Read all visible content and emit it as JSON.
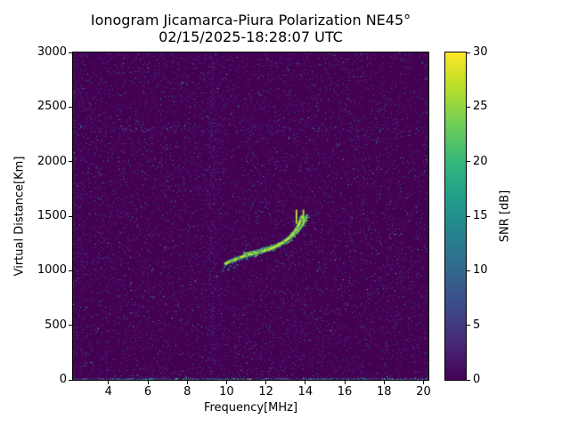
{
  "chart_data": {
    "type": "heatmap",
    "title": "Ionogram Jicamarca-Piura Polarization NE45°",
    "subtitle": "02/15/2025-18:28:07 UTC",
    "xlabel": "Frequency[MHz]",
    "ylabel": "Virtual Distance[Km]",
    "xlim": [
      2.2,
      20.25
    ],
    "ylim": [
      0,
      3000
    ],
    "xticks": [
      4,
      6,
      8,
      10,
      12,
      14,
      16,
      18,
      20
    ],
    "yticks": [
      0,
      500,
      1000,
      1500,
      2000,
      2500,
      3000
    ],
    "grid": false,
    "colormap": "viridis",
    "colormap_stops": [
      "#440154",
      "#482878",
      "#3e4989",
      "#31688e",
      "#26828e",
      "#1f9e89",
      "#35b779",
      "#6ece58",
      "#b5de2b",
      "#fde725"
    ],
    "colorbar": {
      "label": "SNR [dB]",
      "ticks": [
        0,
        5,
        10,
        15,
        20,
        25,
        30
      ],
      "min": 0,
      "max": 30,
      "position": "right"
    },
    "background": {
      "snr_db": 0,
      "noise_seed": 20250215,
      "noise_density": 0.055,
      "noise_snr_max": 15,
      "bright_speck_prob": 0.025
    },
    "rfi_bands": [
      {
        "f_start": 9.05,
        "f_end": 9.45,
        "density": 0.16,
        "snr_max": 9
      },
      {
        "f_start": 9.5,
        "f_end": 9.78,
        "density": 0.09,
        "snr_max": 8
      },
      {
        "f_start": 2.2,
        "f_end": 2.75,
        "density": 0.1,
        "snr_max": 9
      }
    ],
    "horizontal_band": {
      "km_center": 2300,
      "km_halfwidth": 22,
      "extra_density": 0.07,
      "snr_max": 11
    },
    "ground_echo": {
      "km_max": 20,
      "density": 0.5,
      "snr_min": 5,
      "snr_max": 27
    },
    "echo_traces": [
      {
        "name": "O-mode",
        "core_snr_db": 28,
        "halo_snr_db": 16,
        "points": [
          [
            9.95,
            1065
          ],
          [
            10.1,
            1080
          ],
          [
            10.3,
            1095
          ],
          [
            10.5,
            1110
          ],
          [
            10.7,
            1122
          ],
          [
            10.9,
            1133
          ],
          [
            11.1,
            1143
          ],
          [
            11.3,
            1152
          ],
          [
            11.5,
            1162
          ],
          [
            11.7,
            1172
          ],
          [
            11.9,
            1182
          ],
          [
            12.1,
            1193
          ],
          [
            12.3,
            1206
          ],
          [
            12.5,
            1222
          ],
          [
            12.7,
            1240
          ],
          [
            12.9,
            1262
          ],
          [
            13.1,
            1290
          ],
          [
            13.3,
            1325
          ],
          [
            13.5,
            1370
          ],
          [
            13.65,
            1415
          ],
          [
            13.75,
            1460
          ],
          [
            13.82,
            1495
          ]
        ]
      },
      {
        "name": "X-mode",
        "core_snr_db": 25,
        "halo_snr_db": 15,
        "points": [
          [
            10.9,
            1152
          ],
          [
            11.2,
            1165
          ],
          [
            11.5,
            1178
          ],
          [
            11.8,
            1192
          ],
          [
            12.1,
            1208
          ],
          [
            12.4,
            1226
          ],
          [
            12.7,
            1248
          ],
          [
            13.0,
            1276
          ],
          [
            13.3,
            1312
          ],
          [
            13.6,
            1358
          ],
          [
            13.8,
            1405
          ],
          [
            13.95,
            1455
          ],
          [
            14.08,
            1505
          ]
        ]
      }
    ],
    "spurs": [
      {
        "f": 13.55,
        "km_start": 1430,
        "km_end": 1560,
        "snr_db": 26
      },
      {
        "f": 13.9,
        "km_start": 1430,
        "km_end": 1560,
        "snr_db": 26
      }
    ],
    "onset_scatter": {
      "snr_db": 10,
      "points": [
        [
          9.82,
          1000
        ],
        [
          9.9,
          1035
        ],
        [
          10.0,
          1055
        ],
        [
          10.1,
          1012
        ],
        [
          10.2,
          1042
        ],
        [
          10.3,
          1068
        ],
        [
          10.45,
          1080
        ],
        [
          10.55,
          1052
        ],
        [
          10.15,
          1088
        ],
        [
          9.95,
          1070
        ],
        [
          10.4,
          1030
        ],
        [
          10.65,
          1095
        ]
      ]
    }
  }
}
